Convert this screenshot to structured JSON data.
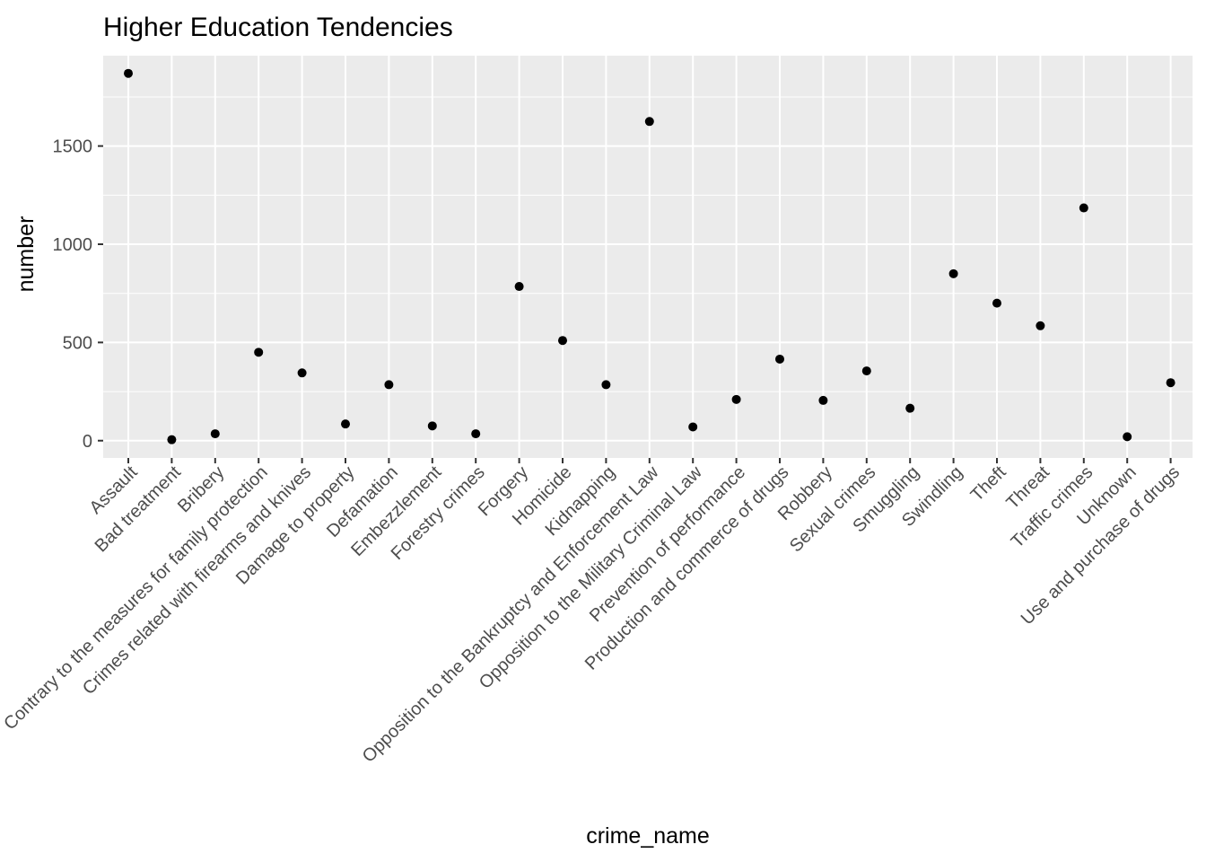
{
  "chart_data": {
    "type": "scatter",
    "title": "Higher Education Tendencies",
    "xlabel": "crime_name",
    "ylabel": "number",
    "categories": [
      "Assault",
      "Bad treatment",
      "Bribery",
      "Contrary to the measures for family protection",
      "Crimes related  with firearms and knives",
      "Damage to property",
      "Defamation",
      "Embezzlement",
      "Forestry crimes",
      "Forgery",
      "Homicide",
      "Kidnapping",
      "Opposition  to the  Bankruptcy  and Enforcement Law",
      "Opposition to the Military Criminal Law",
      "Prevention of performance",
      "Production and commerce of drugs",
      "Robbery",
      "Sexual crimes",
      "Smuggling",
      "Swindling",
      "Theft",
      "Threat",
      "Traffic crimes",
      "Unknown",
      "Use and  purchase of drugs"
    ],
    "values": [
      1870,
      5,
      35,
      450,
      345,
      85,
      285,
      75,
      35,
      785,
      510,
      285,
      1625,
      70,
      210,
      415,
      205,
      355,
      165,
      850,
      700,
      585,
      1185,
      20,
      295
    ],
    "yticks": [
      0,
      500,
      1000,
      1500
    ],
    "ylim": [
      -88,
      1960
    ],
    "grid": true,
    "point_color": "#000000",
    "panel_color": "#ebebeb",
    "grid_color": "#ffffff"
  }
}
